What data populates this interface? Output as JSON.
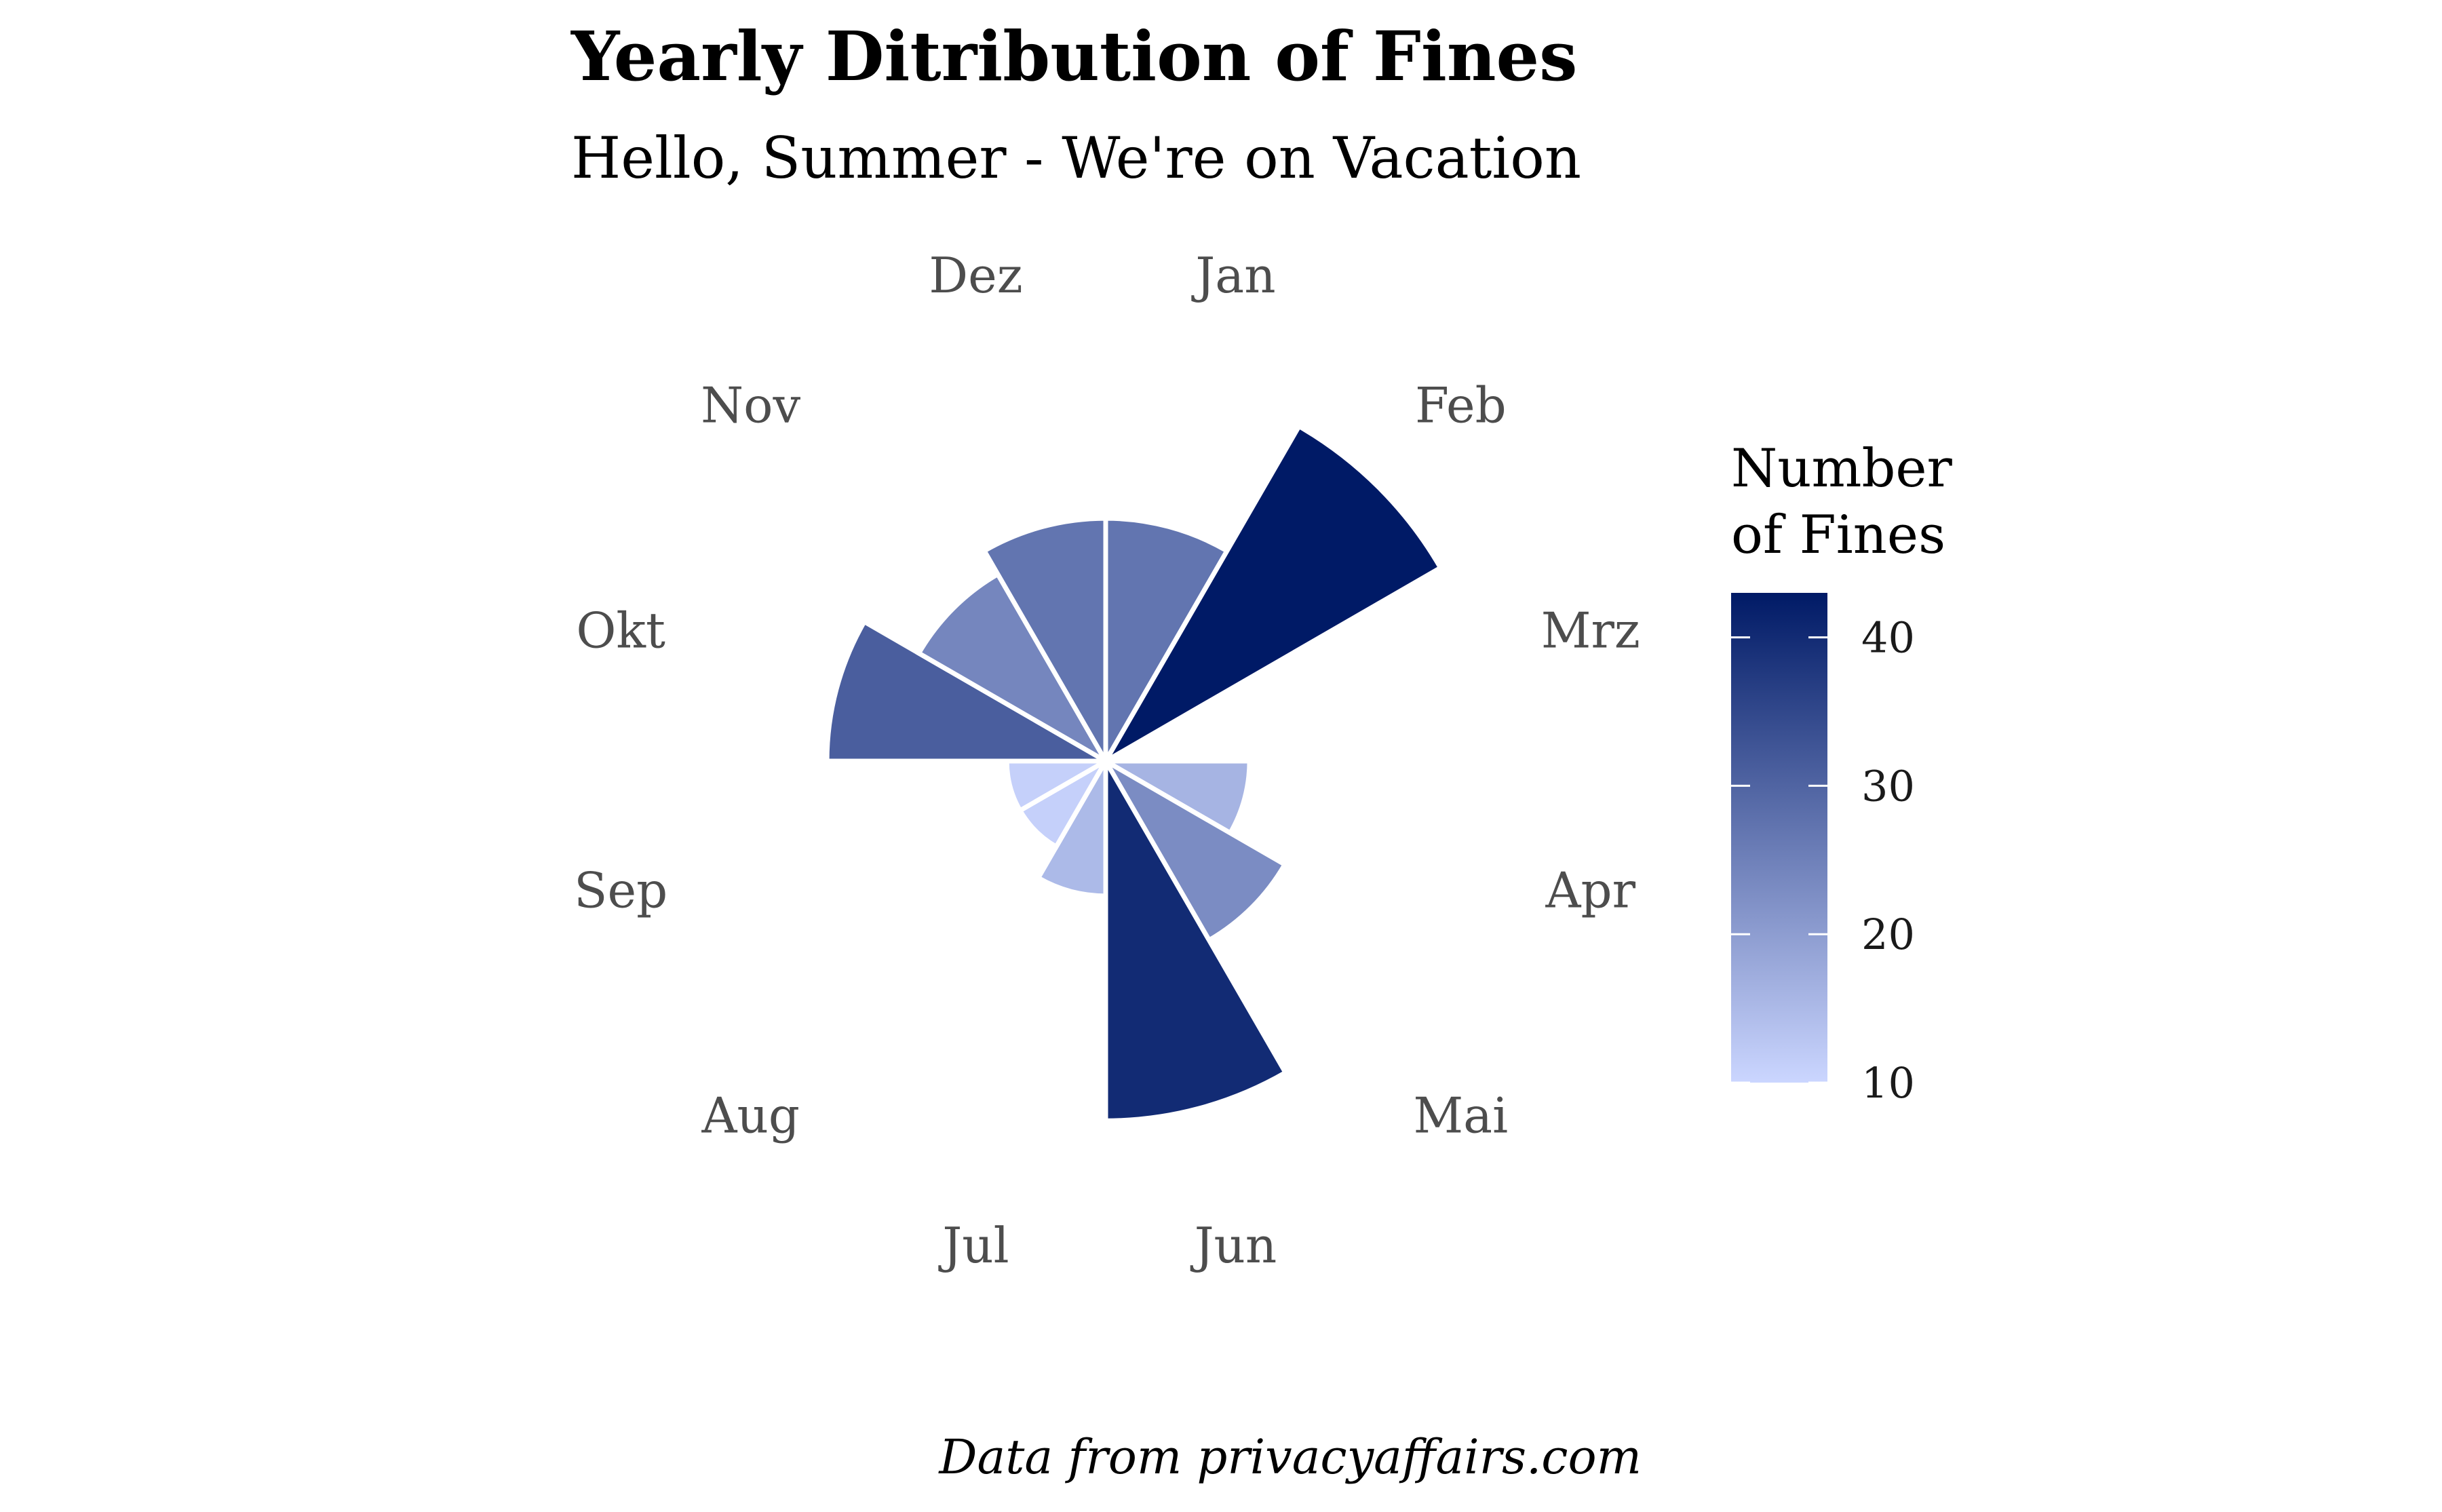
{
  "chart_data": {
    "type": "bar",
    "coord": "polar",
    "title": "Yearly Ditribution of Fines",
    "subtitle": "Hello, Summer - We're on Vacation",
    "caption": "Data from privacyaffairs.com",
    "categories": [
      "Jan",
      "Feb",
      "Mrz",
      "Apr",
      "Mai",
      "Jun",
      "Jul",
      "Aug",
      "Sep",
      "Okt",
      "Nov",
      "Dez"
    ],
    "values": [
      27,
      43,
      0,
      16,
      23,
      40,
      15,
      11,
      11,
      31,
      24,
      27
    ],
    "legend": {
      "title_line1": "Number",
      "title_line2": "of Fines",
      "ticks": [
        10,
        20,
        30,
        40
      ],
      "tick_labels": [
        "10",
        "20",
        "30",
        "40"
      ],
      "range": [
        10,
        43
      ],
      "placement": "right"
    },
    "color_scale": {
      "low": "#cbd6ff",
      "high": "#001a66"
    }
  }
}
